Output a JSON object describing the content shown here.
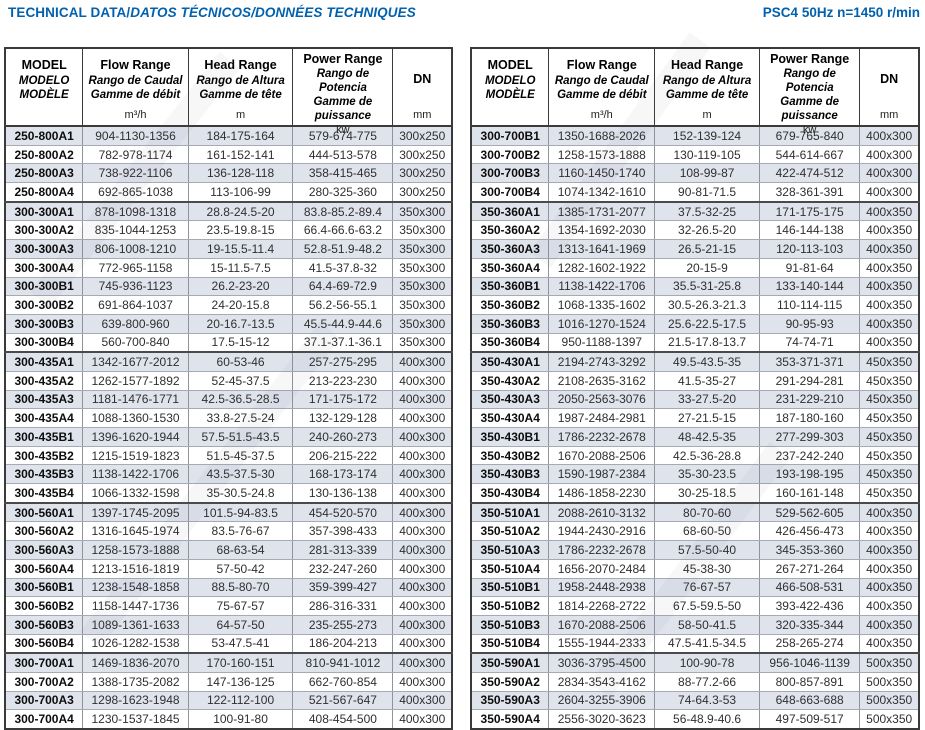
{
  "page": {
    "title_main": "TECHNICAL DATA/",
    "title_italic": "DATOS TÉCNICOS/DONNÉES TECHNIQUES",
    "title_right": "PSC4 50Hz n=1450 r/min",
    "accent_color": "#0061af",
    "shaded_row_color": "#dfe3ec"
  },
  "table_header": {
    "model_lines": [
      "MODEL",
      "MODELO",
      "MODÈLE"
    ],
    "flow_lines": [
      "Flow Range",
      "Rango de Caudal",
      "Gamme de débit"
    ],
    "flow_unit": "m³/h",
    "head_lines": [
      "Head Range",
      "Rango de Altura",
      "Gamme de tête"
    ],
    "head_unit": "m",
    "power_lines": [
      "Power Range",
      "Rango de Potencia",
      "Gamme de puissance"
    ],
    "power_unit": "kw",
    "dn_label": "DN",
    "dn_unit": "mm"
  },
  "tables": [
    {
      "id": "left",
      "group_breaks": [
        4,
        12,
        20,
        28
      ],
      "rows": [
        [
          "250-800A1",
          "904-1130-1356",
          "184-175-164",
          "579-674-775",
          "300x250"
        ],
        [
          "250-800A2",
          "782-978-1174",
          "161-152-141",
          "444-513-578",
          "300x250"
        ],
        [
          "250-800A3",
          "738-922-1106",
          "136-128-118",
          "358-415-465",
          "300x250"
        ],
        [
          "250-800A4",
          "692-865-1038",
          "113-106-99",
          "280-325-360",
          "300x250"
        ],
        [
          "300-300A1",
          "878-1098-1318",
          "28.8-24.5-20",
          "83.8-85.2-89.4",
          "350x300"
        ],
        [
          "300-300A2",
          "835-1044-1253",
          "23.5-19.8-15",
          "66.4-66.6-63.2",
          "350x300"
        ],
        [
          "300-300A3",
          "806-1008-1210",
          "19-15.5-11.4",
          "52.8-51.9-48.2",
          "350x300"
        ],
        [
          "300-300A4",
          "772-965-1158",
          "15-11.5-7.5",
          "41.5-37.8-32",
          "350x300"
        ],
        [
          "300-300B1",
          "745-936-1123",
          "26.2-23-20",
          "64.4-69-72.9",
          "350x300"
        ],
        [
          "300-300B2",
          "691-864-1037",
          "24-20-15.8",
          "56.2-56-55.1",
          "350x300"
        ],
        [
          "300-300B3",
          "639-800-960",
          "20-16.7-13.5",
          "45.5-44.9-44.6",
          "350x300"
        ],
        [
          "300-300B4",
          "560-700-840",
          "17.5-15-12",
          "37.1-37.1-36.1",
          "350x300"
        ],
        [
          "300-435A1",
          "1342-1677-2012",
          "60-53-46",
          "257-275-295",
          "400x300"
        ],
        [
          "300-435A2",
          "1262-1577-1892",
          "52-45-37.5",
          "213-223-230",
          "400x300"
        ],
        [
          "300-435A3",
          "1181-1476-1771",
          "42.5-36.5-28.5",
          "171-175-172",
          "400x300"
        ],
        [
          "300-435A4",
          "1088-1360-1530",
          "33.8-27.5-24",
          "132-129-128",
          "400x300"
        ],
        [
          "300-435B1",
          "1396-1620-1944",
          "57.5-51.5-43.5",
          "240-260-273",
          "400x300"
        ],
        [
          "300-435B2",
          "1215-1519-1823",
          "51.5-45-37.5",
          "206-215-222",
          "400x300"
        ],
        [
          "300-435B3",
          "1138-1422-1706",
          "43.5-37.5-30",
          "168-173-174",
          "400x300"
        ],
        [
          "300-435B4",
          "1066-1332-1598",
          "35-30.5-24.8",
          "130-136-138",
          "400x300"
        ],
        [
          "300-560A1",
          "1397-1745-2095",
          "101.5-94-83.5",
          "454-520-570",
          "400x300"
        ],
        [
          "300-560A2",
          "1316-1645-1974",
          "83.5-76-67",
          "357-398-433",
          "400x300"
        ],
        [
          "300-560A3",
          "1258-1573-1888",
          "68-63-54",
          "281-313-339",
          "400x300"
        ],
        [
          "300-560A4",
          "1213-1516-1819",
          "57-50-42",
          "232-247-260",
          "400x300"
        ],
        [
          "300-560B1",
          "1238-1548-1858",
          "88.5-80-70",
          "359-399-427",
          "400x300"
        ],
        [
          "300-560B2",
          "1158-1447-1736",
          "75-67-57",
          "286-316-331",
          "400x300"
        ],
        [
          "300-560B3",
          "1089-1361-1633",
          "64-57-50",
          "235-255-273",
          "400x300"
        ],
        [
          "300-560B4",
          "1026-1282-1538",
          "53-47.5-41",
          "186-204-213",
          "400x300"
        ],
        [
          "300-700A1",
          "1469-1836-2070",
          "170-160-151",
          "810-941-1012",
          "400x300"
        ],
        [
          "300-700A2",
          "1388-1735-2082",
          "147-136-125",
          "662-760-854",
          "400x300"
        ],
        [
          "300-700A3",
          "1298-1623-1948",
          "122-112-100",
          "521-567-647",
          "400x300"
        ],
        [
          "300-700A4",
          "1230-1537-1845",
          "100-91-80",
          "408-454-500",
          "400x300"
        ]
      ]
    },
    {
      "id": "right",
      "group_breaks": [
        4,
        12,
        20,
        28
      ],
      "rows": [
        [
          "300-700B1",
          "1350-1688-2026",
          "152-139-124",
          "679-765-840",
          "400x300"
        ],
        [
          "300-700B2",
          "1258-1573-1888",
          "130-119-105",
          "544-614-667",
          "400x300"
        ],
        [
          "300-700B3",
          "1160-1450-1740",
          "108-99-87",
          "422-474-512",
          "400x300"
        ],
        [
          "300-700B4",
          "1074-1342-1610",
          "90-81-71.5",
          "328-361-391",
          "400x300"
        ],
        [
          "350-360A1",
          "1385-1731-2077",
          "37.5-32-25",
          "171-175-175",
          "400x350"
        ],
        [
          "350-360A2",
          "1354-1692-2030",
          "32-26.5-20",
          "146-144-138",
          "400x350"
        ],
        [
          "350-360A3",
          "1313-1641-1969",
          "26.5-21-15",
          "120-113-103",
          "400x350"
        ],
        [
          "350-360A4",
          "1282-1602-1922",
          "20-15-9",
          "91-81-64",
          "400x350"
        ],
        [
          "350-360B1",
          "1138-1422-1706",
          "35.5-31-25.8",
          "133-140-144",
          "400x350"
        ],
        [
          "350-360B2",
          "1068-1335-1602",
          "30.5-26.3-21.3",
          "110-114-115",
          "400x350"
        ],
        [
          "350-360B3",
          "1016-1270-1524",
          "25.6-22.5-17.5",
          "90-95-93",
          "400x350"
        ],
        [
          "350-360B4",
          "950-1188-1397",
          "21.5-17.8-13.7",
          "74-74-71",
          "400x350"
        ],
        [
          "350-430A1",
          "2194-2743-3292",
          "49.5-43.5-35",
          "353-371-371",
          "450x350"
        ],
        [
          "350-430A2",
          "2108-2635-3162",
          "41.5-35-27",
          "291-294-281",
          "450x350"
        ],
        [
          "350-430A3",
          "2050-2563-3076",
          "33-27.5-20",
          "231-229-210",
          "450x350"
        ],
        [
          "350-430A4",
          "1987-2484-2981",
          "27-21.5-15",
          "187-180-160",
          "450x350"
        ],
        [
          "350-430B1",
          "1786-2232-2678",
          "48-42.5-35",
          "277-299-303",
          "450x350"
        ],
        [
          "350-430B2",
          "1670-2088-2506",
          "42.5-36-28.8",
          "237-242-240",
          "450x350"
        ],
        [
          "350-430B3",
          "1590-1987-2384",
          "35-30-23.5",
          "193-198-195",
          "450x350"
        ],
        [
          "350-430B4",
          "1486-1858-2230",
          "30-25-18.5",
          "160-161-148",
          "450x350"
        ],
        [
          "350-510A1",
          "2088-2610-3132",
          "80-70-60",
          "529-562-605",
          "400x350"
        ],
        [
          "350-510A2",
          "1944-2430-2916",
          "68-60-50",
          "426-456-473",
          "400x350"
        ],
        [
          "350-510A3",
          "1786-2232-2678",
          "57.5-50-40",
          "345-353-360",
          "400x350"
        ],
        [
          "350-510A4",
          "1656-2070-2484",
          "45-38-30",
          "267-271-264",
          "400x350"
        ],
        [
          "350-510B1",
          "1958-2448-2938",
          "76-67-57",
          "466-508-531",
          "400x350"
        ],
        [
          "350-510B2",
          "1814-2268-2722",
          "67.5-59.5-50",
          "393-422-436",
          "400x350"
        ],
        [
          "350-510B3",
          "1670-2088-2506",
          "58-50-41.5",
          "320-335-344",
          "400x350"
        ],
        [
          "350-510B4",
          "1555-1944-2333",
          "47.5-41.5-34.5",
          "258-265-274",
          "400x350"
        ],
        [
          "350-590A1",
          "3036-3795-4500",
          "100-90-78",
          "956-1046-1139",
          "500x350"
        ],
        [
          "350-590A2",
          "2834-3543-4162",
          "88-77.2-66",
          "800-857-891",
          "500x350"
        ],
        [
          "350-590A3",
          "2604-3255-3906",
          "74-64.3-53",
          "648-663-688",
          "500x350"
        ],
        [
          "350-590A4",
          "2556-3020-3623",
          "56-48.9-40.6",
          "497-509-517",
          "500x350"
        ]
      ]
    }
  ]
}
